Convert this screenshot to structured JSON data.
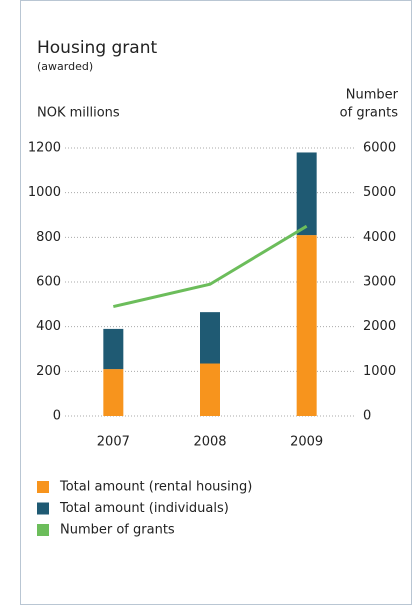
{
  "chart_data": {
    "type": "bar",
    "stacked": true,
    "title": "Housing grant",
    "subtitle": "(awarded)",
    "ylabel": "NOK millions",
    "y2label": [
      "Number",
      "of grants"
    ],
    "categories": [
      "2007",
      "2008",
      "2009"
    ],
    "series": [
      {
        "name": "Total amount (rental housing)",
        "color": "#f7941d",
        "values": [
          210,
          235,
          810
        ]
      },
      {
        "name": "Total amount (individuals)",
        "color": "#1f5a73",
        "values": [
          180,
          230,
          370
        ]
      },
      {
        "name": "Number of grants",
        "color": "#6cbd5b",
        "type": "line",
        "axis": "y2",
        "values": [
          2450,
          2950,
          4250
        ]
      }
    ],
    "ylim": [
      0,
      1200
    ],
    "yticks": [
      0,
      200,
      400,
      600,
      800,
      1000,
      1200
    ],
    "y2lim": [
      0,
      6000
    ],
    "y2ticks": [
      0,
      1000,
      2000,
      3000,
      4000,
      5000,
      6000
    ],
    "grid": true
  }
}
